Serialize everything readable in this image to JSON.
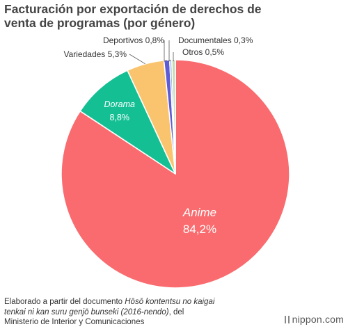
{
  "header": {
    "title_line1": "Facturación por exportación de derechos de",
    "title_line2": "venta de programas (por género)"
  },
  "chart_data": {
    "type": "pie",
    "title": "Facturación por exportación de derechos de venta de programas (por género)",
    "slices": [
      {
        "name": "Anime",
        "value": 84.2,
        "label": "84,2%",
        "color": "#f96b6e",
        "italic": true
      },
      {
        "name": "Dorama",
        "value": 8.8,
        "label": "8,8%",
        "color": "#14bf93",
        "italic": true
      },
      {
        "name": "Variedades",
        "value": 5.3,
        "label": "5,3%",
        "color": "#fac46e",
        "italic": false
      },
      {
        "name": "Deportivos",
        "value": 0.8,
        "label": "0,8%",
        "color": "#5d5bd6",
        "italic": false
      },
      {
        "name": "Documentales",
        "value": 0.3,
        "label": "0,3%",
        "color": "#8fb5df",
        "italic": false
      },
      {
        "name": "Otros",
        "value": 0.5,
        "label": "0,5%",
        "color": "#c8dab0",
        "italic": false
      }
    ]
  },
  "source": {
    "line1_prefix": "Elaborado a partir del documento ",
    "line1_italic": "Hōsō kontentsu no kaigai",
    "line2_italic": "tenkai ni kan suru genjō bunseki (2016-nendo)",
    "line2_suffix": ", del",
    "line3": "Ministerio de Interior y Comunicaciones"
  },
  "brand": {
    "text": "nippon.com"
  }
}
